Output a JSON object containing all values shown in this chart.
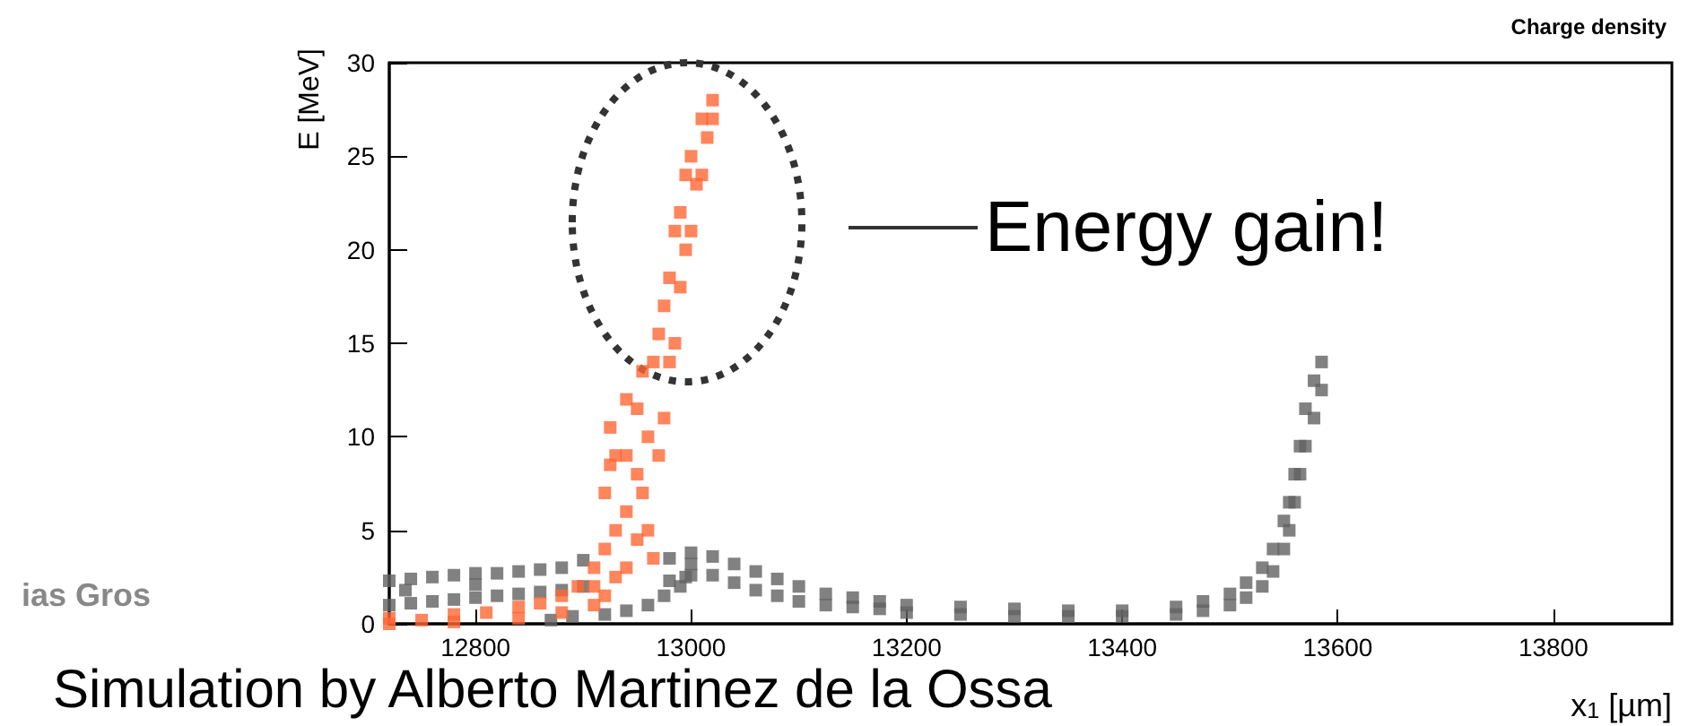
{
  "chart_data": {
    "type": "scatter",
    "title": "Charge density",
    "xlabel": "x$_{1}$ [µm]",
    "ylabel": "E [MeV]",
    "marker": "square",
    "xlim": [
      12720,
      13910
    ],
    "xticks": [
      12800,
      13000,
      13200,
      13400,
      13600,
      13800
    ],
    "ylim": [
      0,
      30
    ],
    "yticks": [
      0,
      5,
      10,
      15,
      20,
      25,
      30
    ],
    "annotations": [
      "Energy gain!",
      "Simulation by Alberto Martinez de la Ossa",
      "ias Gros"
    ],
    "series": [
      {
        "color": "#616161",
        "x": [
          12720,
          12720,
          12740,
          12740,
          12760,
          12760,
          12780,
          12780,
          12800,
          12800,
          12820,
          12820,
          12840,
          12840,
          12860,
          12860,
          12880,
          12880,
          12900,
          12900,
          12980,
          12980,
          13000,
          13000,
          13000,
          13020,
          13020,
          13040,
          13040,
          13060,
          13060,
          13080,
          13080,
          13100,
          13100,
          13125,
          13125,
          13150,
          13150,
          13175,
          13175,
          13200,
          13200,
          13250,
          13250,
          13300,
          13300,
          13350,
          13350,
          13400,
          13400,
          13450,
          13450,
          13475,
          13475,
          13500,
          13500,
          13515,
          13515,
          13530,
          13530,
          13540,
          13540,
          13550,
          13550,
          13555,
          13555,
          13560,
          13560,
          13565,
          13565,
          13570,
          13570,
          13578,
          13578,
          13585,
          13585,
          12870,
          12890,
          12920,
          12940,
          12960,
          12975,
          12990,
          12995,
          12735,
          12800
        ],
        "values": [
          1.0,
          2.3,
          1.1,
          2.4,
          1.2,
          2.5,
          1.3,
          2.6,
          1.4,
          2.7,
          1.5,
          2.7,
          1.6,
          2.8,
          1.7,
          2.9,
          1.8,
          3.0,
          2.0,
          3.4,
          2.3,
          3.5,
          2.6,
          3.8,
          3.2,
          2.6,
          3.6,
          2.2,
          3.2,
          1.8,
          2.8,
          1.5,
          2.4,
          1.2,
          2.0,
          1.0,
          1.6,
          0.9,
          1.4,
          0.8,
          1.2,
          0.6,
          1.0,
          0.5,
          0.9,
          0.4,
          0.8,
          0.4,
          0.7,
          0.4,
          0.7,
          0.5,
          0.9,
          0.7,
          1.2,
          1.0,
          1.6,
          1.4,
          2.2,
          2.0,
          3.0,
          2.8,
          4.0,
          4.0,
          5.5,
          5.0,
          6.5,
          6.5,
          8.0,
          8.0,
          9.5,
          9.5,
          11.5,
          11.0,
          13.0,
          12.5,
          14.0,
          0.2,
          0.4,
          0.5,
          0.7,
          1.0,
          1.5,
          2.0,
          2.5,
          1.8,
          2.1
        ]
      },
      {
        "color": "#ff6633",
        "x": [
          12720,
          12720,
          12750,
          12780,
          12780,
          12810,
          12840,
          12840,
          12860,
          12880,
          12880,
          12895,
          12910,
          12910,
          12910,
          12920,
          12920,
          12920,
          12925,
          12925,
          12930,
          12930,
          12930,
          12940,
          12940,
          12940,
          12940,
          12950,
          12950,
          12950,
          12955,
          12955,
          12960,
          12960,
          12965,
          12965,
          12970,
          12970,
          12975,
          12975,
          12980,
          12980,
          12985,
          12985,
          12990,
          12990,
          12995,
          12995,
          13000,
          13000,
          13005,
          13010,
          13010,
          13015,
          13020,
          13020
        ],
        "values": [
          0,
          0.3,
          0.2,
          0.1,
          0.5,
          0.6,
          0.3,
          0.9,
          1.1,
          0.6,
          1.5,
          2.0,
          1.0,
          2.0,
          3.0,
          1.5,
          4.0,
          7.0,
          8.5,
          10.5,
          2.5,
          5.0,
          9.0,
          3.0,
          6.0,
          9.0,
          12.0,
          4.5,
          8.0,
          11.5,
          7.0,
          13.5,
          5.0,
          10.0,
          3.5,
          14.0,
          9.0,
          15.5,
          11.0,
          17.0,
          14.0,
          18.5,
          15.0,
          21.0,
          18.0,
          22.0,
          20.0,
          24.0,
          21.0,
          25.0,
          23.5,
          24.0,
          27.0,
          26.0,
          27.0,
          28.0
        ]
      }
    ]
  }
}
